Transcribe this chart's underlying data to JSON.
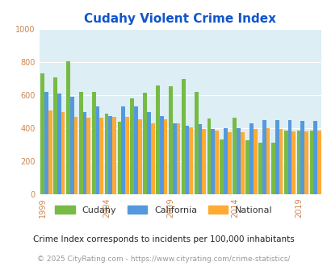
{
  "title": "Cudahy Violent Crime Index",
  "subtitle": "Crime Index corresponds to incidents per 100,000 inhabitants",
  "footer": "© 2025 CityRating.com - https://www.cityrating.com/crime-statistics/",
  "years": [
    1999,
    2000,
    2001,
    2002,
    2003,
    2004,
    2005,
    2006,
    2007,
    2008,
    2009,
    2010,
    2011,
    2012,
    2013,
    2014,
    2015,
    2016,
    2017,
    2018,
    2019,
    2020
  ],
  "cudahy": [
    735,
    710,
    805,
    620,
    620,
    490,
    440,
    580,
    615,
    660,
    655,
    700,
    620,
    460,
    330,
    465,
    325,
    310,
    310,
    385,
    385,
    385
  ],
  "california": [
    620,
    610,
    590,
    500,
    530,
    475,
    530,
    530,
    500,
    475,
    430,
    415,
    425,
    395,
    400,
    400,
    430,
    450,
    450,
    450,
    445,
    445
  ],
  "national": [
    510,
    500,
    470,
    465,
    465,
    470,
    470,
    455,
    430,
    455,
    430,
    405,
    395,
    385,
    375,
    375,
    395,
    400,
    395,
    380,
    380,
    385
  ],
  "bar_colors": [
    "#77bb44",
    "#5599dd",
    "#ffaa33"
  ],
  "bar_labels": [
    "Cudahy",
    "California",
    "National"
  ],
  "bg_color": "#ddeef5",
  "ylim": [
    0,
    1000
  ],
  "yticks": [
    0,
    200,
    400,
    600,
    800,
    1000
  ],
  "title_color": "#1155cc",
  "subtitle_color": "#222222",
  "footer_color": "#999999",
  "title_fontsize": 11,
  "subtitle_fontsize": 7.5,
  "footer_fontsize": 6.5,
  "tick_label_color": "#cc8855",
  "grid_color": "#ffffff",
  "tick_years": [
    1999,
    2004,
    2009,
    2014,
    2019
  ]
}
